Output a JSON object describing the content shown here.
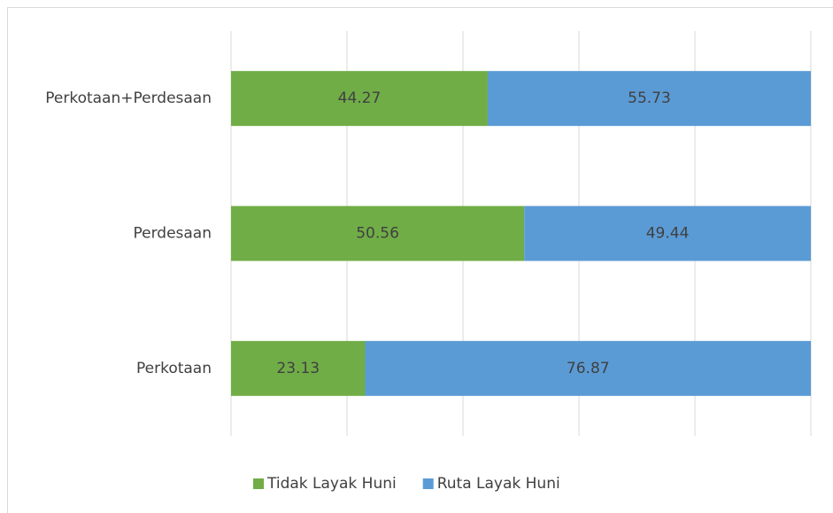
{
  "chart_data": {
    "type": "stacked_barh",
    "categories": [
      "Perkotaan+Perdesaan",
      "Perdesaan",
      "Perkotaan"
    ],
    "series": [
      {
        "name": "Tidak Layak Huni",
        "color": "#70ad47",
        "values": [
          44.27,
          50.56,
          23.13
        ]
      },
      {
        "name": "Ruta Layak Huni",
        "color": "#5b9bd5",
        "values": [
          55.73,
          49.44,
          76.87
        ]
      }
    ],
    "xlim": [
      0,
      100
    ],
    "xticks": [
      0,
      20,
      40,
      60,
      80,
      100
    ],
    "grid": true,
    "legend": "bottom"
  }
}
